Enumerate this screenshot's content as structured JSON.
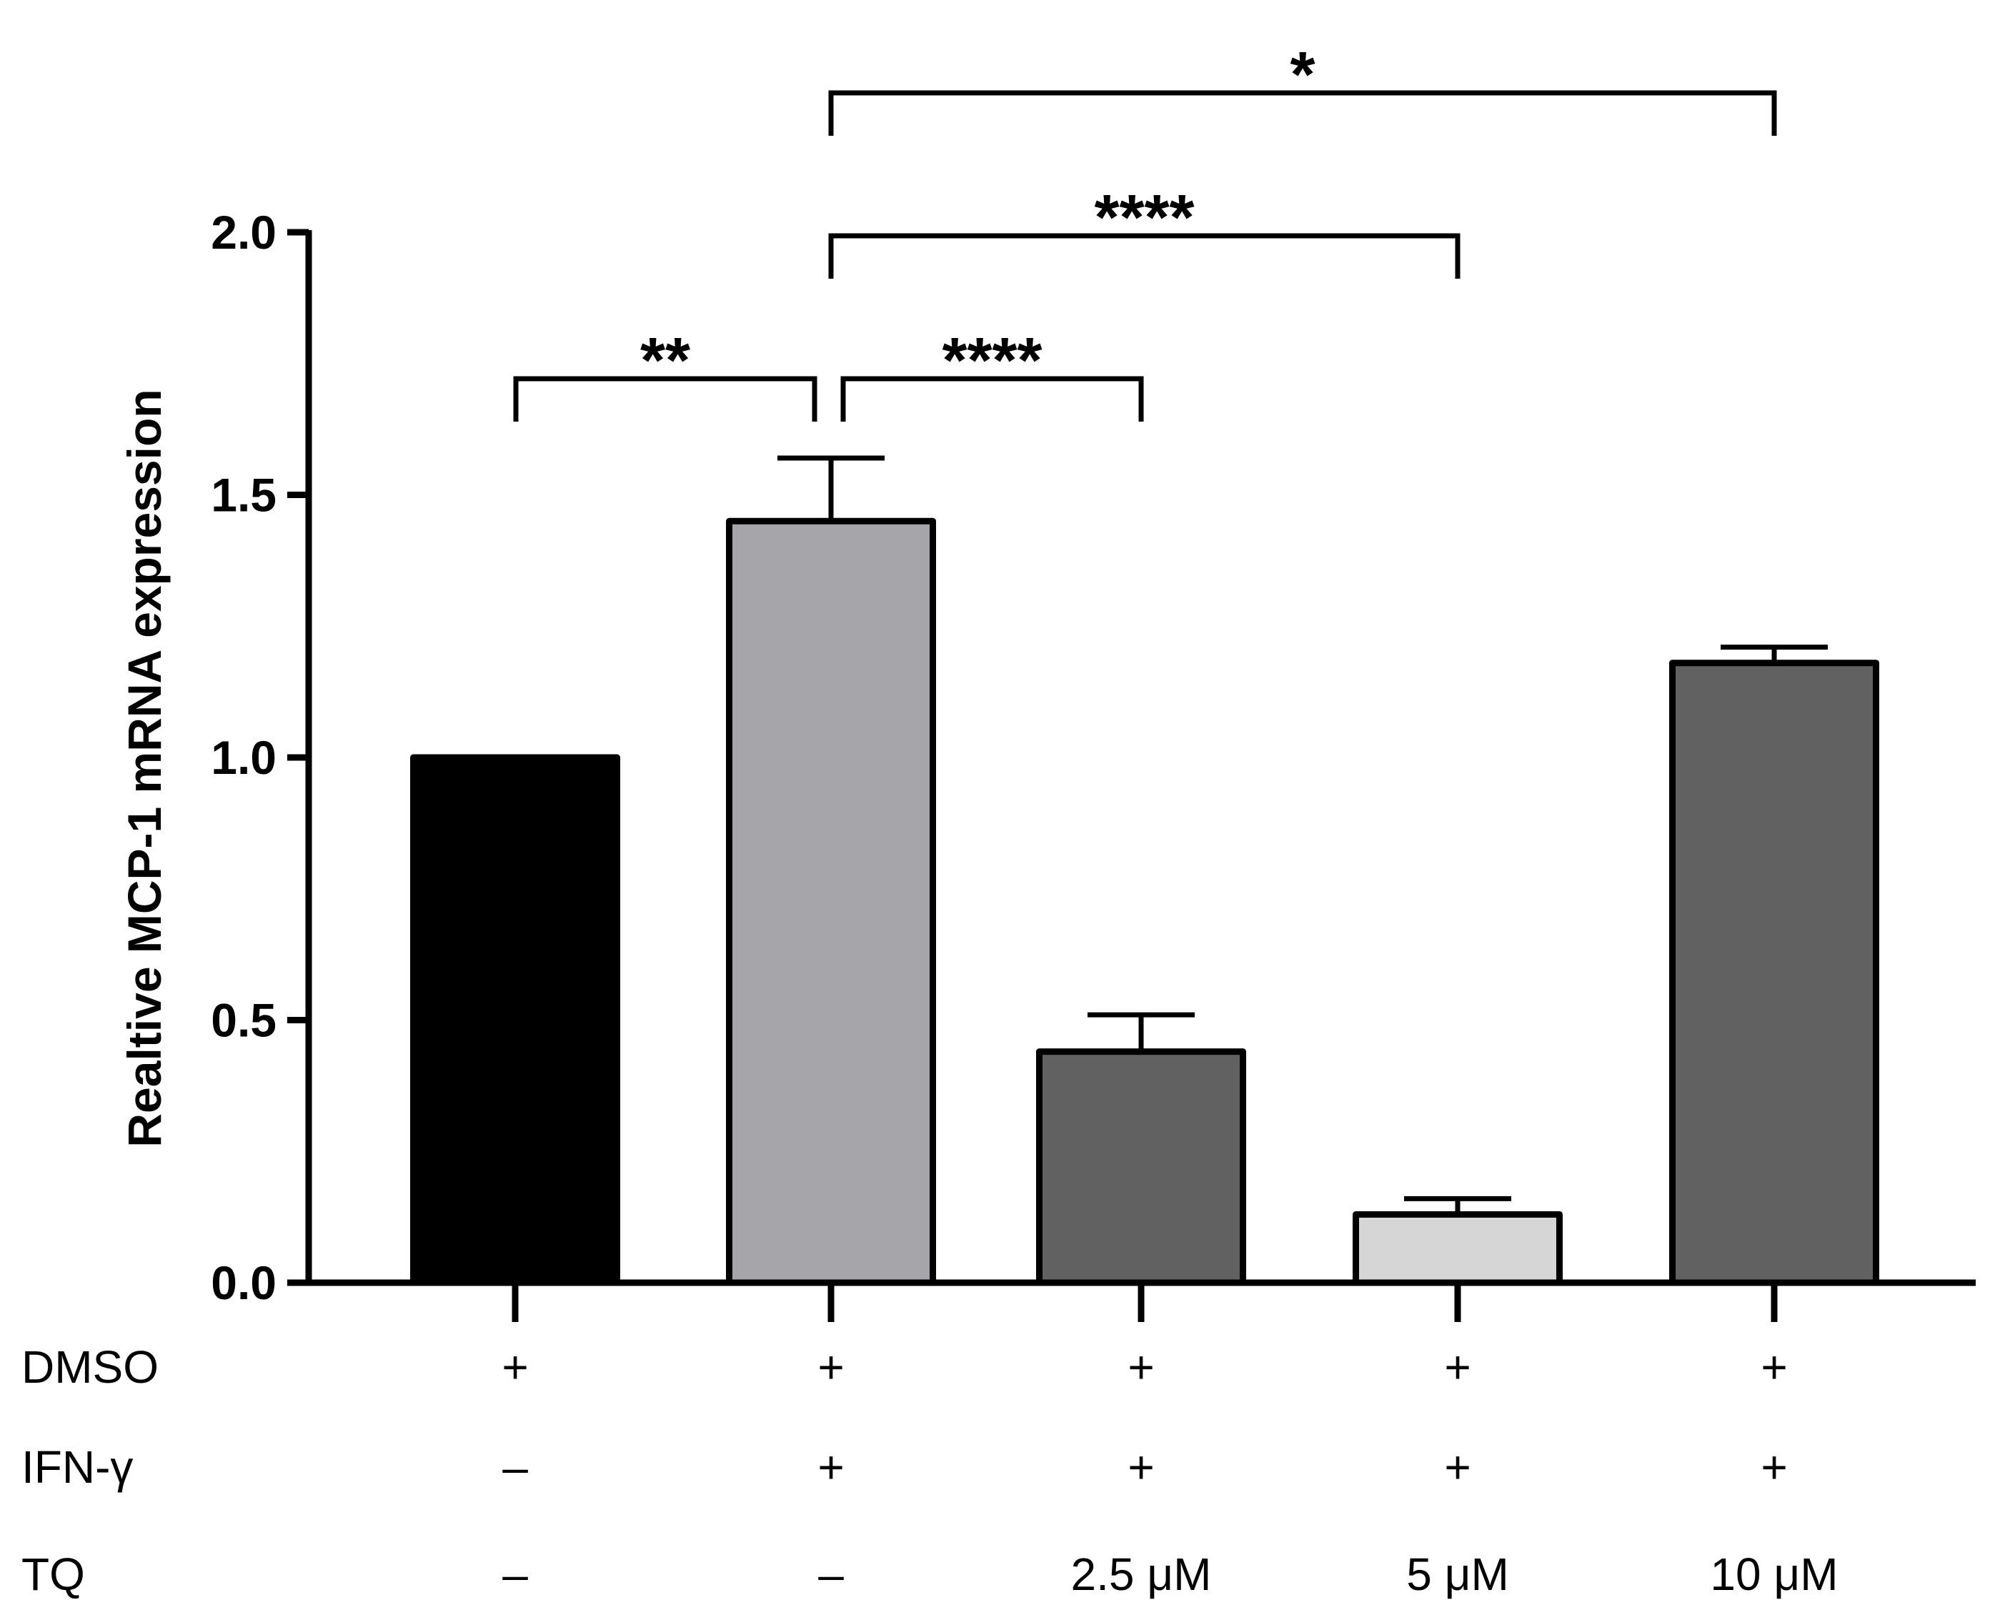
{
  "chart_data": {
    "type": "bar",
    "ylabel": "Realtive MCP-1 mRNA expression",
    "ylim": [
      0,
      2.0
    ],
    "yticks": [
      "0.0",
      "0.5",
      "1.0",
      "1.5",
      "2.0"
    ],
    "grid": false,
    "categories": [
      "DMSO",
      "DMSO + IFN-γ",
      "DMSO + IFN-γ + TQ 2.5 μM",
      "DMSO + IFN-γ + TQ 5 μM",
      "DMSO + IFN-γ + TQ 10 μM"
    ],
    "values": [
      1.0,
      1.45,
      0.44,
      0.13,
      1.18
    ],
    "errors": [
      0.0,
      0.12,
      0.07,
      0.03,
      0.03
    ],
    "bar_colors": [
      "#000000",
      "#a6a5aa",
      "#616161",
      "#d6d6d6",
      "#616161"
    ],
    "conditions": [
      {
        "name": "DMSO",
        "values": [
          "+",
          "+",
          "+",
          "+",
          "+"
        ]
      },
      {
        "name": "IFN-γ",
        "values": [
          "–",
          "+",
          "+",
          "+",
          "+"
        ]
      },
      {
        "name": "TQ",
        "values": [
          "–",
          "–",
          "2.5 μM",
          "5 μM",
          "10 μM"
        ]
      }
    ],
    "significance": [
      {
        "from": 0,
        "to": 1,
        "label": "**"
      },
      {
        "from": 1,
        "to": 2,
        "label": "****"
      },
      {
        "from": 1,
        "to": 3,
        "label": "****"
      },
      {
        "from": 1,
        "to": 4,
        "label": "*"
      }
    ]
  }
}
